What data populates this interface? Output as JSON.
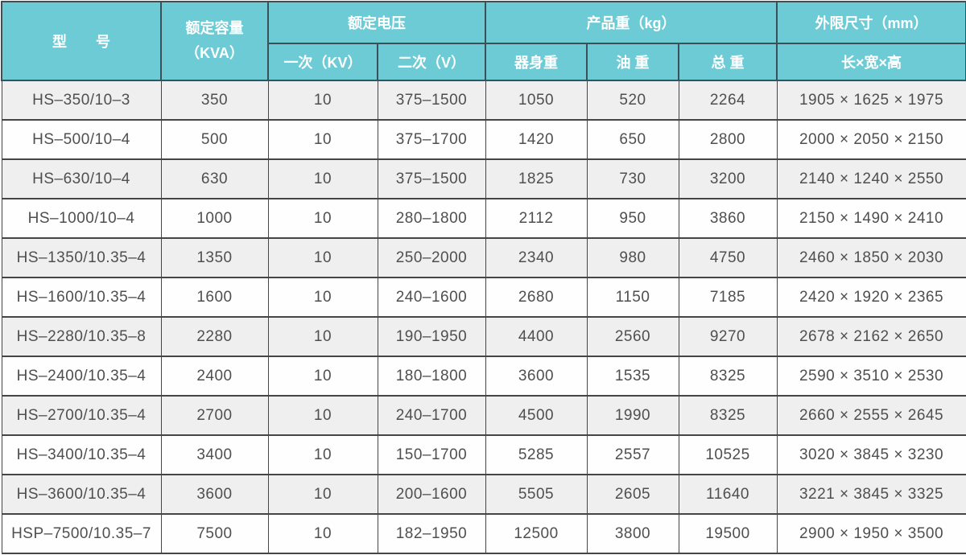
{
  "table": {
    "header": {
      "col_model": "型　　号",
      "col_capacity_line1": "额定容量",
      "col_capacity_line2": "（KVA）",
      "group_voltage": "额定电压",
      "col_primary": "一次（KV）",
      "col_secondary": "二次（V）",
      "group_weight": "产品重（kg）",
      "col_body_weight": "器身重",
      "col_oil_weight": "油 重",
      "col_total_weight": "总 重",
      "group_dimensions": "外限尺寸（mm）",
      "col_lwh": "长×宽×高"
    },
    "rows": [
      [
        "HS–350/10–3",
        "350",
        "10",
        "375–1500",
        "1050",
        "520",
        "2264",
        "1905 × 1625 × 1975"
      ],
      [
        "HS–500/10–4",
        "500",
        "10",
        "375–1700",
        "1420",
        "650",
        "2800",
        "2000 × 2050 × 2150"
      ],
      [
        "HS–630/10–4",
        "630",
        "10",
        "375–1500",
        "1825",
        "730",
        "3200",
        "2140 × 1240 × 2550"
      ],
      [
        "HS–1000/10–4",
        "1000",
        "10",
        "280–1800",
        "2112",
        "950",
        "3860",
        "2150 × 1490 × 2410"
      ],
      [
        "HS–1350/10.35–4",
        "1350",
        "10",
        "250–2000",
        "2340",
        "980",
        "4750",
        "2460 × 1850 × 2030"
      ],
      [
        "HS–1600/10.35–4",
        "1600",
        "10",
        "240–1600",
        "2680",
        "1150",
        "7185",
        "2420 × 1920 × 2365"
      ],
      [
        "HS–2280/10.35–8",
        "2280",
        "10",
        "190–1950",
        "4400",
        "2560",
        "9270",
        "2678 × 2162 × 2650"
      ],
      [
        "HS–2400/10.35–4",
        "2400",
        "10",
        "180–1800",
        "3600",
        "1535",
        "8325",
        "2590 × 3510 × 2530"
      ],
      [
        "HS–2700/10.35–4",
        "2700",
        "10",
        "240–1700",
        "4500",
        "1990",
        "8325",
        "2660 × 2555 × 2645"
      ],
      [
        "HS–3400/10.35–4",
        "3400",
        "10",
        "150–1700",
        "5285",
        "2557",
        "10525",
        "3020 × 3845 × 3230"
      ],
      [
        "HS–3600/10.35–4",
        "3600",
        "10",
        "200–1600",
        "5505",
        "2605",
        "11640",
        "3221 × 3845 × 3325"
      ],
      [
        "HSP–7500/10.35–7",
        "7500",
        "10",
        "182–1950",
        "12500",
        "3800",
        "19500",
        "2900 × 1950 × 3500"
      ]
    ]
  },
  "colors": {
    "header_bg": "#6DCBD5",
    "header_text": "#FFFFFF",
    "header_border": "#3C5058",
    "row_alt_bg": "#F0EFEF",
    "row_bg": "#FEFEFE",
    "cell_border": "#454545",
    "cell_text": "#4F4F4F"
  }
}
